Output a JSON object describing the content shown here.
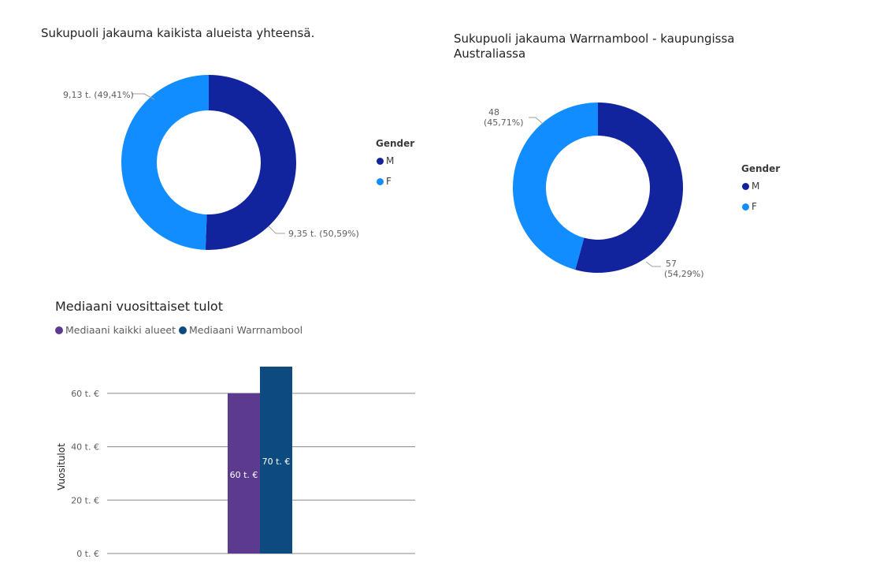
{
  "donut1": {
    "title": "Sukupuoli jakauma kaikista alueista yhteensä.",
    "legend_title": "Gender",
    "legend": [
      {
        "label": "M",
        "color": "#12239e"
      },
      {
        "label": "F",
        "color": "#118dff"
      }
    ],
    "labels": {
      "M": "9,35 t. (50,59%)",
      "F": "9,13 t. (49,41%)"
    }
  },
  "donut2": {
    "title": "Sukupuoli jakauma Warrnambool - kaupungissa\nAustraliassa",
    "legend_title": "Gender",
    "legend": [
      {
        "label": "M",
        "color": "#12239e"
      },
      {
        "label": "F",
        "color": "#118dff"
      }
    ],
    "labels": {
      "M_line1": "57",
      "M_line2": "(54,29%)",
      "F_line1": "48",
      "F_line2": "(45,71%)"
    }
  },
  "bar": {
    "title": "Mediaani vuosittaiset tulot",
    "legend": [
      {
        "label": "Mediaani kaikki alueet",
        "color": "#5b3a8f"
      },
      {
        "label": "Mediaani Warrnambool",
        "color": "#0d4a80"
      }
    ],
    "ylabel": "Vuositulot",
    "ticks": [
      "0 t. €",
      "20 t. €",
      "40 t. €",
      "60 t. €"
    ],
    "value_labels": [
      "60 t. €",
      "70 t. €"
    ]
  },
  "chart_data": [
    {
      "type": "pie",
      "title": "Sukupuoli jakauma kaikista alueista yhteensä.",
      "categories": [
        "M",
        "F"
      ],
      "values": [
        9350,
        9130
      ],
      "percent": [
        50.59,
        49.41
      ],
      "colors": [
        "#12239e",
        "#118dff"
      ],
      "legend": "right"
    },
    {
      "type": "pie",
      "title": "Sukupuoli jakauma Warrnambool - kaupungissa Australiassa",
      "categories": [
        "M",
        "F"
      ],
      "values": [
        57,
        48
      ],
      "percent": [
        54.29,
        45.71
      ],
      "colors": [
        "#12239e",
        "#118dff"
      ],
      "legend": "right"
    },
    {
      "type": "bar",
      "title": "Mediaani vuosittaiset tulot",
      "ylabel": "Vuositulot",
      "series": [
        {
          "name": "Mediaani kaikki alueet",
          "values": [
            60000
          ],
          "color": "#5b3a8f"
        },
        {
          "name": "Mediaani Warrnambool",
          "values": [
            70000
          ],
          "color": "#0d4a80"
        }
      ],
      "yticks": [
        0,
        20000,
        40000,
        60000
      ],
      "ylim": [
        0,
        70000
      ],
      "grid": true,
      "legend": "top-left"
    }
  ]
}
